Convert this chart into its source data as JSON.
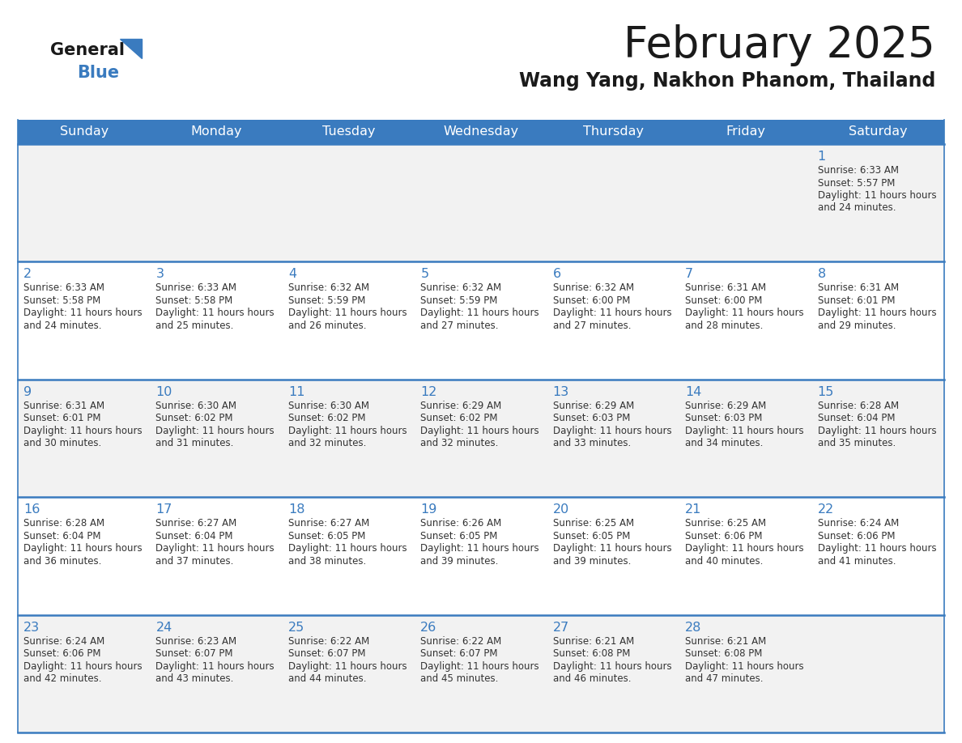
{
  "title": "February 2025",
  "subtitle": "Wang Yang, Nakhon Phanom, Thailand",
  "days_of_week": [
    "Sunday",
    "Monday",
    "Tuesday",
    "Wednesday",
    "Thursday",
    "Friday",
    "Saturday"
  ],
  "header_bg": "#3a7bbf",
  "header_text": "#ffffff",
  "cell_bg_odd": "#f2f2f2",
  "cell_bg_even": "#ffffff",
  "day_number_color": "#3a7bbf",
  "text_color": "#333333",
  "line_color": "#3a7bbf",
  "logo_general_color": "#1a1a1a",
  "logo_blue_color": "#3a7bbf",
  "calendar_data": [
    [
      null,
      null,
      null,
      null,
      null,
      null,
      {
        "day": 1,
        "sunrise": "6:33 AM",
        "sunset": "5:57 PM",
        "daylight": "11 hours and 24 minutes."
      }
    ],
    [
      {
        "day": 2,
        "sunrise": "6:33 AM",
        "sunset": "5:58 PM",
        "daylight": "11 hours and 24 minutes."
      },
      {
        "day": 3,
        "sunrise": "6:33 AM",
        "sunset": "5:58 PM",
        "daylight": "11 hours and 25 minutes."
      },
      {
        "day": 4,
        "sunrise": "6:32 AM",
        "sunset": "5:59 PM",
        "daylight": "11 hours and 26 minutes."
      },
      {
        "day": 5,
        "sunrise": "6:32 AM",
        "sunset": "5:59 PM",
        "daylight": "11 hours and 27 minutes."
      },
      {
        "day": 6,
        "sunrise": "6:32 AM",
        "sunset": "6:00 PM",
        "daylight": "11 hours and 27 minutes."
      },
      {
        "day": 7,
        "sunrise": "6:31 AM",
        "sunset": "6:00 PM",
        "daylight": "11 hours and 28 minutes."
      },
      {
        "day": 8,
        "sunrise": "6:31 AM",
        "sunset": "6:01 PM",
        "daylight": "11 hours and 29 minutes."
      }
    ],
    [
      {
        "day": 9,
        "sunrise": "6:31 AM",
        "sunset": "6:01 PM",
        "daylight": "11 hours and 30 minutes."
      },
      {
        "day": 10,
        "sunrise": "6:30 AM",
        "sunset": "6:02 PM",
        "daylight": "11 hours and 31 minutes."
      },
      {
        "day": 11,
        "sunrise": "6:30 AM",
        "sunset": "6:02 PM",
        "daylight": "11 hours and 32 minutes."
      },
      {
        "day": 12,
        "sunrise": "6:29 AM",
        "sunset": "6:02 PM",
        "daylight": "11 hours and 32 minutes."
      },
      {
        "day": 13,
        "sunrise": "6:29 AM",
        "sunset": "6:03 PM",
        "daylight": "11 hours and 33 minutes."
      },
      {
        "day": 14,
        "sunrise": "6:29 AM",
        "sunset": "6:03 PM",
        "daylight": "11 hours and 34 minutes."
      },
      {
        "day": 15,
        "sunrise": "6:28 AM",
        "sunset": "6:04 PM",
        "daylight": "11 hours and 35 minutes."
      }
    ],
    [
      {
        "day": 16,
        "sunrise": "6:28 AM",
        "sunset": "6:04 PM",
        "daylight": "11 hours and 36 minutes."
      },
      {
        "day": 17,
        "sunrise": "6:27 AM",
        "sunset": "6:04 PM",
        "daylight": "11 hours and 37 minutes."
      },
      {
        "day": 18,
        "sunrise": "6:27 AM",
        "sunset": "6:05 PM",
        "daylight": "11 hours and 38 minutes."
      },
      {
        "day": 19,
        "sunrise": "6:26 AM",
        "sunset": "6:05 PM",
        "daylight": "11 hours and 39 minutes."
      },
      {
        "day": 20,
        "sunrise": "6:25 AM",
        "sunset": "6:05 PM",
        "daylight": "11 hours and 39 minutes."
      },
      {
        "day": 21,
        "sunrise": "6:25 AM",
        "sunset": "6:06 PM",
        "daylight": "11 hours and 40 minutes."
      },
      {
        "day": 22,
        "sunrise": "6:24 AM",
        "sunset": "6:06 PM",
        "daylight": "11 hours and 41 minutes."
      }
    ],
    [
      {
        "day": 23,
        "sunrise": "6:24 AM",
        "sunset": "6:06 PM",
        "daylight": "11 hours and 42 minutes."
      },
      {
        "day": 24,
        "sunrise": "6:23 AM",
        "sunset": "6:07 PM",
        "daylight": "11 hours and 43 minutes."
      },
      {
        "day": 25,
        "sunrise": "6:22 AM",
        "sunset": "6:07 PM",
        "daylight": "11 hours and 44 minutes."
      },
      {
        "day": 26,
        "sunrise": "6:22 AM",
        "sunset": "6:07 PM",
        "daylight": "11 hours and 45 minutes."
      },
      {
        "day": 27,
        "sunrise": "6:21 AM",
        "sunset": "6:08 PM",
        "daylight": "11 hours and 46 minutes."
      },
      {
        "day": 28,
        "sunrise": "6:21 AM",
        "sunset": "6:08 PM",
        "daylight": "11 hours and 47 minutes."
      },
      null
    ]
  ]
}
